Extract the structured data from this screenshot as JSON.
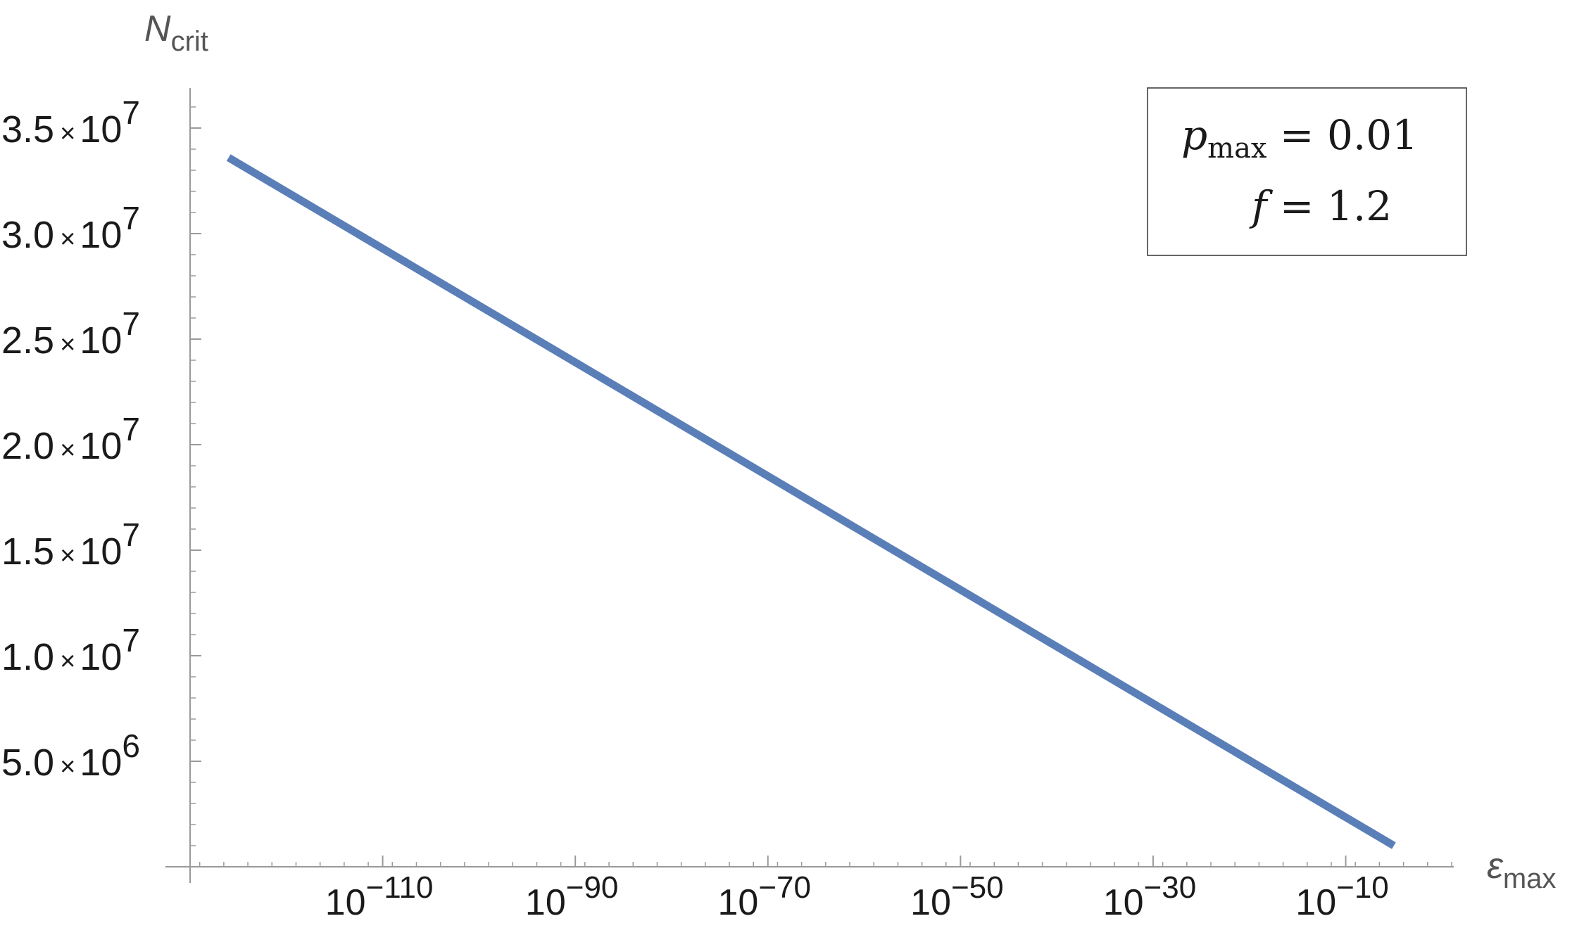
{
  "chart_data": {
    "type": "line",
    "title": "",
    "xlabel": {
      "main": "ε",
      "sub": "max"
    },
    "ylabel": {
      "main": "N",
      "sub": "crit"
    },
    "x_scale": "log",
    "x_exponent_range": [
      -130,
      1
    ],
    "ylim": [
      0,
      37000000
    ],
    "grid": false,
    "x_ticks": [
      {
        "exponent": -110,
        "base": "10",
        "exp_text": "−110"
      },
      {
        "exponent": -90,
        "base": "10",
        "exp_text": "−90"
      },
      {
        "exponent": -70,
        "base": "10",
        "exp_text": "−70"
      },
      {
        "exponent": -50,
        "base": "10",
        "exp_text": "−50"
      },
      {
        "exponent": -30,
        "base": "10",
        "exp_text": "−30"
      },
      {
        "exponent": -10,
        "base": "10",
        "exp_text": "−10"
      }
    ],
    "y_ticks": [
      {
        "value": 5000000,
        "mantissa": "5.0",
        "times": "×",
        "base": "10",
        "exp": "6"
      },
      {
        "value": 10000000,
        "mantissa": "1.0",
        "times": "×",
        "base": "10",
        "exp": "7"
      },
      {
        "value": 15000000,
        "mantissa": "1.5",
        "times": "×",
        "base": "10",
        "exp": "7"
      },
      {
        "value": 20000000,
        "mantissa": "2.0",
        "times": "×",
        "base": "10",
        "exp": "7"
      },
      {
        "value": 25000000,
        "mantissa": "2.5",
        "times": "×",
        "base": "10",
        "exp": "7"
      },
      {
        "value": 30000000,
        "mantissa": "3.0",
        "times": "×",
        "base": "10",
        "exp": "7"
      },
      {
        "value": 35000000,
        "mantissa": "3.5",
        "times": "×",
        "base": "10",
        "exp": "7"
      }
    ],
    "series": [
      {
        "color": "#5a7fb8",
        "points": [
          {
            "x_exponent": -126,
            "y": 33600000
          },
          {
            "x_exponent": -5,
            "y": 1000000
          }
        ]
      }
    ],
    "legend": {
      "placement": "top-right",
      "lines": [
        {
          "var": "p",
          "sub": "max",
          "eq": " = 0.01"
        },
        {
          "var": "f",
          "sub": "",
          "eq": " = 1.2"
        }
      ]
    }
  }
}
